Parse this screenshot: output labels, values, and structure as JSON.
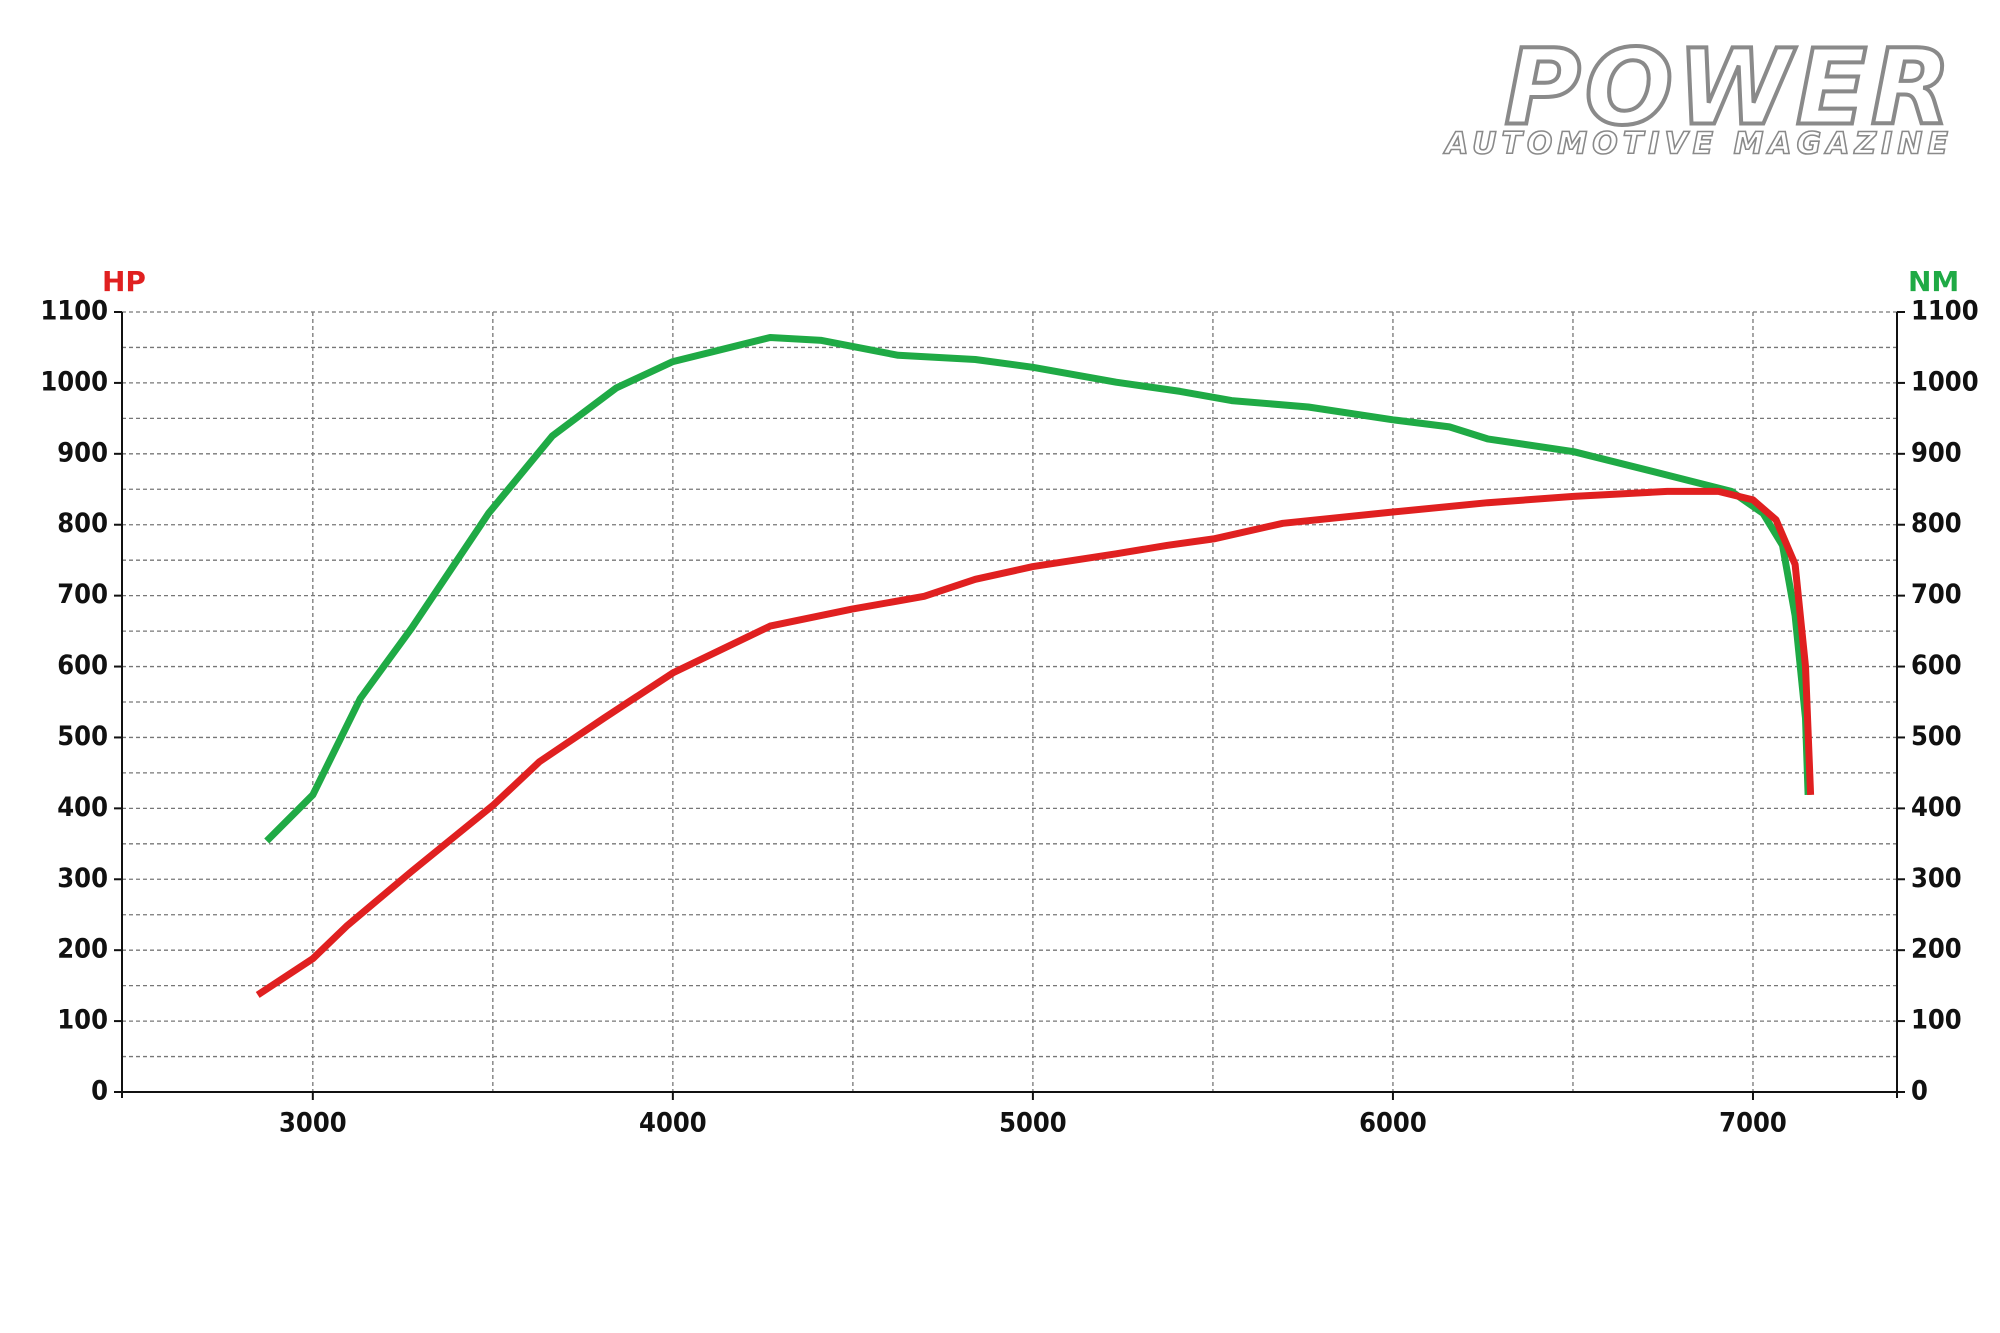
{
  "brand": {
    "name": "POWER",
    "tagline": "AUTOMOTIVE MAGAZINE"
  },
  "chart_data": {
    "type": "line",
    "y_label": "HP",
    "y2_label": "NM",
    "xlim": [
      2470,
      7400
    ],
    "xticks": [
      3000,
      4000,
      5000,
      6000,
      7000
    ],
    "ylim": [
      0,
      1100
    ],
    "yticks": [
      0,
      100,
      200,
      300,
      400,
      500,
      600,
      700,
      800,
      900,
      1000,
      1100
    ],
    "y2lim": [
      0,
      1100
    ],
    "y2ticks": [
      0,
      100,
      200,
      300,
      400,
      500,
      600,
      700,
      800,
      900,
      1000,
      1100
    ],
    "grid": true,
    "series": [
      {
        "name": "HP",
        "color": "#e02020",
        "axis": "y",
        "x": [
          2847,
          3000,
          3096,
          3274,
          3502,
          3630,
          3808,
          4000,
          4270,
          4498,
          4698,
          4840,
          5000,
          5231,
          5374,
          5502,
          5694,
          6000,
          6263,
          6502,
          6762,
          6904,
          7000,
          7064,
          7117,
          7146,
          7160
        ],
        "values": [
          137,
          188,
          235,
          311,
          405,
          466,
          527,
          591,
          657,
          681,
          699,
          723,
          741,
          759,
          771,
          780,
          802,
          818,
          831,
          840,
          847,
          847,
          835,
          807,
          744,
          600,
          419
        ]
      },
      {
        "name": "NM",
        "color": "#1faa45",
        "axis": "y2",
        "x": [
          2872,
          3000,
          3132,
          3274,
          3488,
          3665,
          3843,
          4000,
          4270,
          4413,
          4626,
          4840,
          5000,
          5231,
          5409,
          5552,
          5765,
          6000,
          6157,
          6263,
          6502,
          6762,
          6940,
          7028,
          7082,
          7117,
          7146,
          7153
        ],
        "values": [
          354,
          419,
          555,
          654,
          816,
          925,
          993,
          1030,
          1064,
          1060,
          1039,
          1033,
          1022,
          1001,
          988,
          975,
          966,
          948,
          938,
          921,
          903,
          870,
          847,
          816,
          771,
          672,
          527,
          419
        ]
      }
    ]
  }
}
